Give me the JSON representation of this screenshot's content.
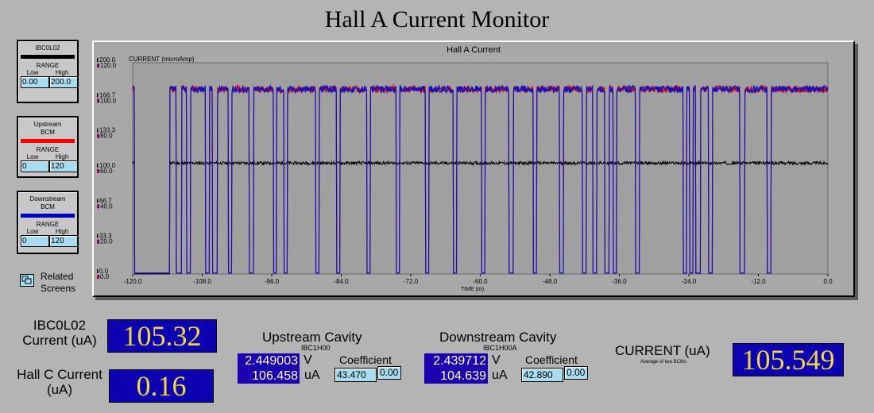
{
  "title": "Hall A Current Monitor",
  "legends": [
    {
      "name": "IBC0L02",
      "color": "#000000",
      "range_label": "RANGE",
      "low_label": "Low",
      "high_label": "High",
      "low": "0.00",
      "high": "200.0"
    },
    {
      "name": "Upstream BCM",
      "color": "#ff0000",
      "range_label": "RANGE",
      "low_label": "Low",
      "high_label": "High",
      "low": "0",
      "high": "120"
    },
    {
      "name": "Downstream BCM",
      "color": "#0000c0",
      "range_label": "RANGE",
      "low_label": "Low",
      "high_label": "High",
      "low": "0",
      "high": "120"
    }
  ],
  "related_screens": "Related Screens",
  "chart_data": {
    "type": "line",
    "title": "Hall A Current",
    "ylabel": "CURRENT (microAmp)",
    "xlabel": "TIME (m)",
    "xlim": [
      -120,
      0
    ],
    "x_ticks": [
      "-120.0",
      "-108.0",
      "-96.0",
      "-84.0",
      "-72.0",
      "-60.0",
      "-48.0",
      "-36.0",
      "-24.0",
      "-12.0",
      "0.0"
    ],
    "y_ticks_black": [
      "0.0",
      "33.3",
      "66.7",
      "100.0",
      "133.3",
      "166.7",
      "200.0"
    ],
    "y_ticks_color": [
      "0.0",
      "20.0",
      "40.0",
      "60.0",
      "80.0",
      "100.0",
      "120.0"
    ],
    "ylim_black": [
      0,
      200
    ],
    "ylim_color": [
      0,
      120
    ],
    "series": [
      {
        "color": "#000000",
        "axis": "black",
        "level": 105,
        "drop": [
          -119.7,
          -113.6
        ]
      },
      {
        "color": "#e00000",
        "axis": "color",
        "level": 105,
        "drop": [
          -119.7,
          -113.6
        ]
      },
      {
        "color": "#1010c0",
        "axis": "color",
        "level": 105,
        "drop": [
          -119.7,
          -113.6
        ]
      }
    ],
    "beam_off": [
      [
        -119.7,
        -113.6
      ],
      [
        -112.5,
        -111.6
      ],
      [
        -110.7,
        -110.0
      ],
      [
        -107.4,
        -106.8
      ],
      [
        -106.2,
        -105.4
      ],
      [
        -103.5,
        -102.9
      ],
      [
        -99.9,
        -99.1
      ],
      [
        -95.7,
        -95.2
      ],
      [
        -93.9,
        -93.3
      ],
      [
        -88.4,
        -87.8
      ],
      [
        -84.8,
        -84.2
      ],
      [
        -79.6,
        -79.0
      ],
      [
        -74.5,
        -73.9
      ],
      [
        -69.5,
        -68.9
      ],
      [
        -64.7,
        -64.1
      ],
      [
        -59.8,
        -59.2
      ],
      [
        -55.1,
        -54.3
      ],
      [
        -50.9,
        -50.3
      ],
      [
        -46.3,
        -45.6
      ],
      [
        -42.4,
        -41.7
      ],
      [
        -40.6,
        -39.9
      ],
      [
        -38.5,
        -37.8
      ],
      [
        -37.1,
        -36.5
      ],
      [
        -33.2,
        -32.5
      ],
      [
        -25.0,
        -24.4
      ],
      [
        -23.9,
        -23.3
      ],
      [
        -22.8,
        -22.0
      ],
      [
        -20.6,
        -19.9
      ],
      [
        -15.2,
        -14.4
      ],
      [
        -10.5,
        -9.8
      ]
    ]
  },
  "ibc_current": {
    "label": "IBC0L02 Current (uA)",
    "value": "105.32"
  },
  "hallc_current": {
    "label": "Hall C Current (uA)",
    "value": "0.16"
  },
  "upstream": {
    "title": "Upstream Cavity",
    "device": "IBC1H00",
    "volts": "2.449003",
    "volts_unit": "V",
    "ua": "106.458",
    "ua_unit": "uA",
    "coef_label": "Coefficient",
    "coef": "43.470",
    "offset": "0.00"
  },
  "downstream": {
    "title": "Downstream Cavity",
    "device": "IBC1H00A",
    "volts": "2.439712",
    "volts_unit": "V",
    "ua": "104.639",
    "ua_unit": "uA",
    "coef_label": "Coefficient",
    "coef": "42.890",
    "offset": "0.00"
  },
  "average": {
    "label": "CURRENT (uA)",
    "sublabel": "Average of two BCMs",
    "value": "105.549"
  }
}
